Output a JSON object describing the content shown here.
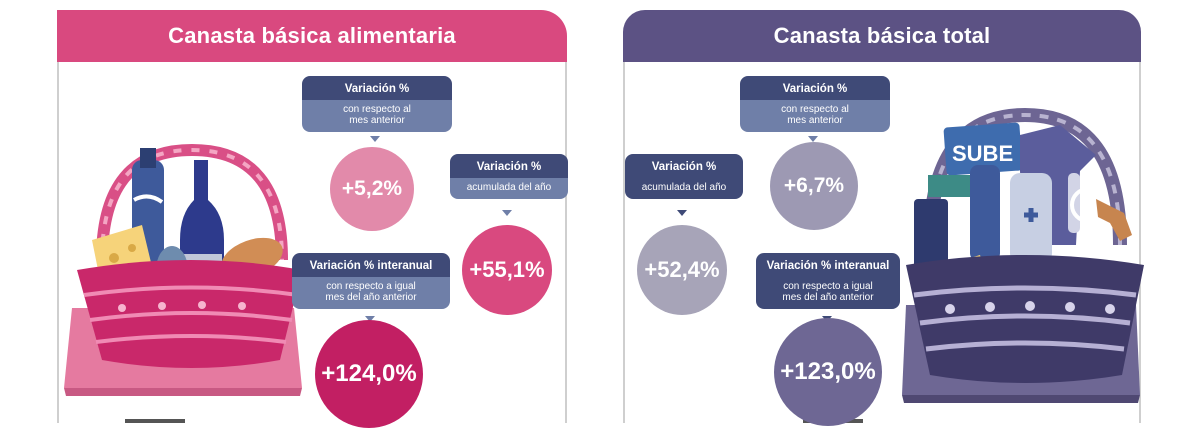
{
  "left": {
    "title": "Canasta básica alimentaria",
    "monthly": {
      "label": "Variación %",
      "sub": "con respecto al mes anterior",
      "value": "+5,2%"
    },
    "ytd": {
      "label": "Variación %",
      "sub": "acumulada del año",
      "value": "+55,1%"
    },
    "yoy": {
      "label": "Variación % interanual",
      "sub": "con respecto a igual mes del año anterior",
      "value": "+124,0%"
    }
  },
  "right": {
    "title": "Canasta básica total",
    "monthly": {
      "label": "Variación %",
      "sub": "con respecto al mes anterior",
      "value": "+6,7%"
    },
    "ytd": {
      "label": "Variación %",
      "sub": "acumulada del año",
      "value": "+52,4%"
    },
    "yoy": {
      "label": "Variación % interanual",
      "sub": "con respecto a igual mes del año anterior",
      "value": "+123,0%"
    },
    "card_text": "SUBE"
  },
  "colors": {
    "pink": "#d9497f",
    "purple": "#5c5284",
    "navy": "#3f4a77",
    "slate": "#6f7fa8",
    "bubble_pink_light": "#e28aaa",
    "bubble_pink": "#d9497f",
    "bubble_magenta": "#c21f63",
    "bubble_grey_light": "#a7a4b8",
    "bubble_grey": "#9d99b3",
    "bubble_purple": "#6e6794"
  }
}
